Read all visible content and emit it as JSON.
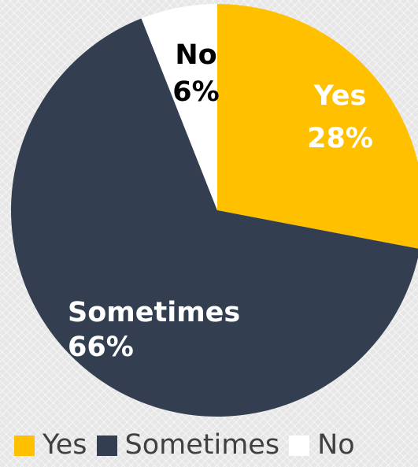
{
  "chart_data": {
    "type": "pie",
    "title": "",
    "slices": [
      {
        "label": "Yes",
        "value": 28,
        "percent_label": "28%",
        "color": "#ffc000",
        "label_color": "#ffffff"
      },
      {
        "label": "Sometimes",
        "value": 66,
        "percent_label": "66%",
        "color": "#333f50",
        "label_color": "#ffffff"
      },
      {
        "label": "No",
        "value": 6,
        "percent_label": "6%",
        "color": "#ffffff",
        "label_color": "#000000"
      }
    ],
    "start_angle": "12 o'clock",
    "direction": "clockwise",
    "legend_position": "bottom"
  }
}
